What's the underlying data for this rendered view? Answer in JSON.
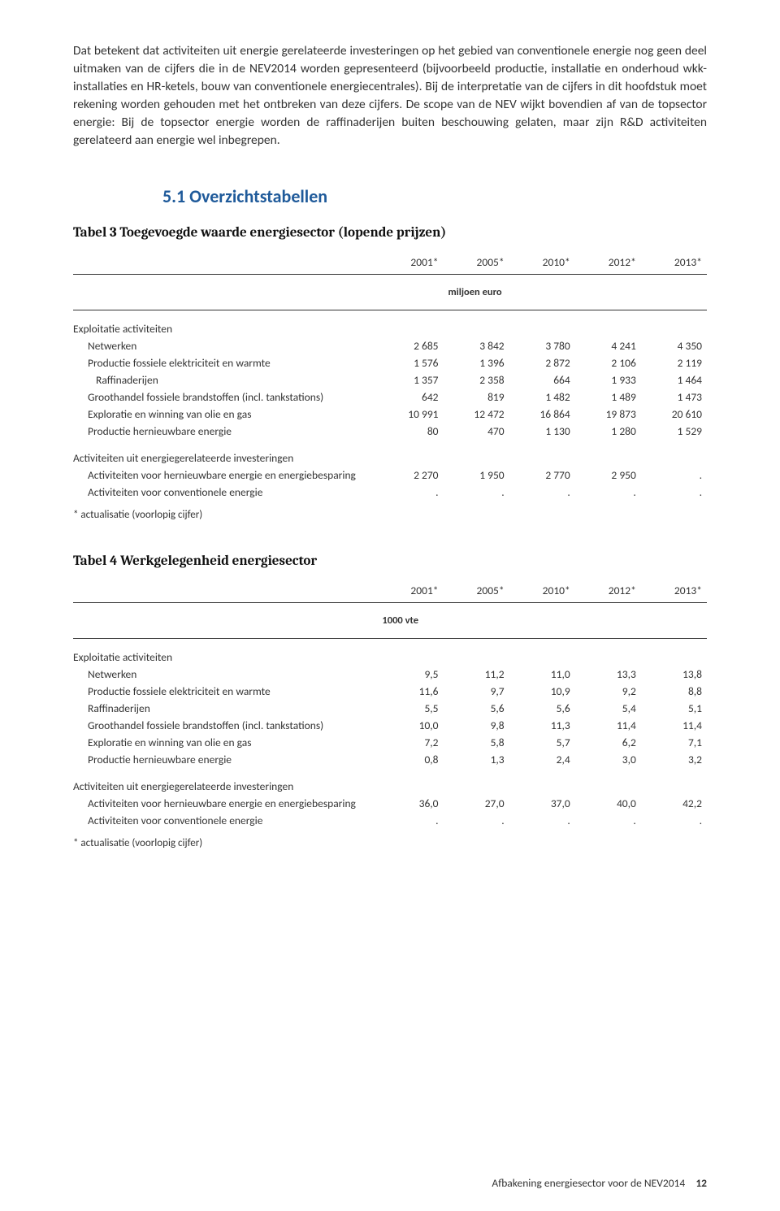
{
  "colors": {
    "text": "#333333",
    "heading": "#1f5a9a",
    "rule": "#333333",
    "background": "#ffffff"
  },
  "body_paragraph": "Dat betekent dat activiteiten uit energie gerelateerde investeringen op het gebied van conventionele energie nog geen deel uitmaken van de cijfers die in de NEV2014 worden gepresenteerd (bijvoorbeeld productie, installatie en onderhoud wkk-installaties en HR-ketels, bouw van conventionele energiecentrales). Bij de interpretatie van de cijfers in dit hoofdstuk moet rekening worden gehouden met het ontbreken van deze cijfers. De scope van de NEV wijkt bovendien af van de topsector energie: Bij de topsector energie worden de raffinaderijen buiten beschouwing gelaten, maar zijn R&D activiteiten gerelateerd aan energie  wel inbegrepen.",
  "section_heading": "5.1  Overzichtstabellen",
  "years": [
    "2001*",
    "2005*",
    "2010*",
    "2012*",
    "2013*"
  ],
  "footnote": "* actualisatie (voorlopig cijfer)",
  "table3": {
    "caption": "Tabel 3    Toegevoegde waarde energiesector (lopende prijzen)",
    "unit": "miljoen euro",
    "unit_col_start": 2,
    "group1_label": "Exploitatie activiteiten",
    "group1_rows": [
      {
        "label": "Netwerken",
        "indent": 1,
        "values": [
          "2 685",
          "3 842",
          "3 780",
          "4 241",
          "4 350"
        ]
      },
      {
        "label": "Productie fossiele elektriciteit en warmte",
        "indent": 1,
        "values": [
          "1 576",
          "1 396",
          "2 872",
          "2 106",
          "2 119"
        ]
      },
      {
        "label": "Raffinaderijen",
        "indent": 2,
        "values": [
          "1 357",
          "2 358",
          "664",
          "1 933",
          "1 464"
        ]
      },
      {
        "label": "Groothandel fossiele brandstoffen (incl. tankstations)",
        "indent": 1,
        "values": [
          "642",
          "819",
          "1 482",
          "1 489",
          "1 473"
        ]
      },
      {
        "label": "Exploratie en winning van olie en gas",
        "indent": 1,
        "values": [
          "10 991",
          "12 472",
          "16 864",
          "19 873",
          "20 610"
        ]
      },
      {
        "label": "Productie hernieuwbare energie",
        "indent": 1,
        "values": [
          "80",
          "470",
          "1 130",
          "1 280",
          "1 529"
        ]
      }
    ],
    "group2_label": "Activiteiten uit energiegerelateerde investeringen",
    "group2_rows": [
      {
        "label": "Activiteiten voor hernieuwbare energie en energiebesparing",
        "indent": 1,
        "values": [
          "2 270",
          "1 950",
          "2 770",
          "2 950",
          "."
        ]
      },
      {
        "label": "Activiteiten voor conventionele energie",
        "indent": 1,
        "values": [
          ".",
          ".",
          ".",
          ".",
          "."
        ]
      }
    ]
  },
  "table4": {
    "caption": "Tabel 4    Werkgelegenheid energiesector",
    "unit": "1000 vte",
    "unit_col_start": 1,
    "group1_label": "Exploitatie activiteiten",
    "group1_rows": [
      {
        "label": "Netwerken",
        "indent": 1,
        "values": [
          "9,5",
          "11,2",
          "11,0",
          "13,3",
          "13,8"
        ]
      },
      {
        "label": "Productie fossiele elektriciteit en warmte",
        "indent": 1,
        "values": [
          "11,6",
          "9,7",
          "10,9",
          "9,2",
          "8,8"
        ]
      },
      {
        "label": "Raffinaderijen",
        "indent": 1,
        "values": [
          "5,5",
          "5,6",
          "5,6",
          "5,4",
          "5,1"
        ]
      },
      {
        "label": "Groothandel fossiele brandstoffen (incl. tankstations)",
        "indent": 1,
        "values": [
          "10,0",
          "9,8",
          "11,3",
          "11,4",
          "11,4"
        ]
      },
      {
        "label": "Exploratie en winning van olie en gas",
        "indent": 1,
        "values": [
          "7,2",
          "5,8",
          "5,7",
          "6,2",
          "7,1"
        ]
      },
      {
        "label": "Productie hernieuwbare energie",
        "indent": 1,
        "values": [
          "0,8",
          "1,3",
          "2,4",
          "3,0",
          "3,2"
        ]
      }
    ],
    "group2_label": "Activiteiten uit energiegerelateerde investeringen",
    "group2_rows": [
      {
        "label": "Activiteiten voor hernieuwbare energie en energiebesparing",
        "indent": 1,
        "values": [
          "36,0",
          "27,0",
          "37,0",
          "40,0",
          "42,2"
        ]
      },
      {
        "label": "Activiteiten voor conventionele energie",
        "indent": 1,
        "values": [
          ".",
          ".",
          ".",
          ".",
          "."
        ]
      }
    ]
  },
  "footer": {
    "text": "Afbakening energiesector voor de NEV2014",
    "page": "12"
  }
}
